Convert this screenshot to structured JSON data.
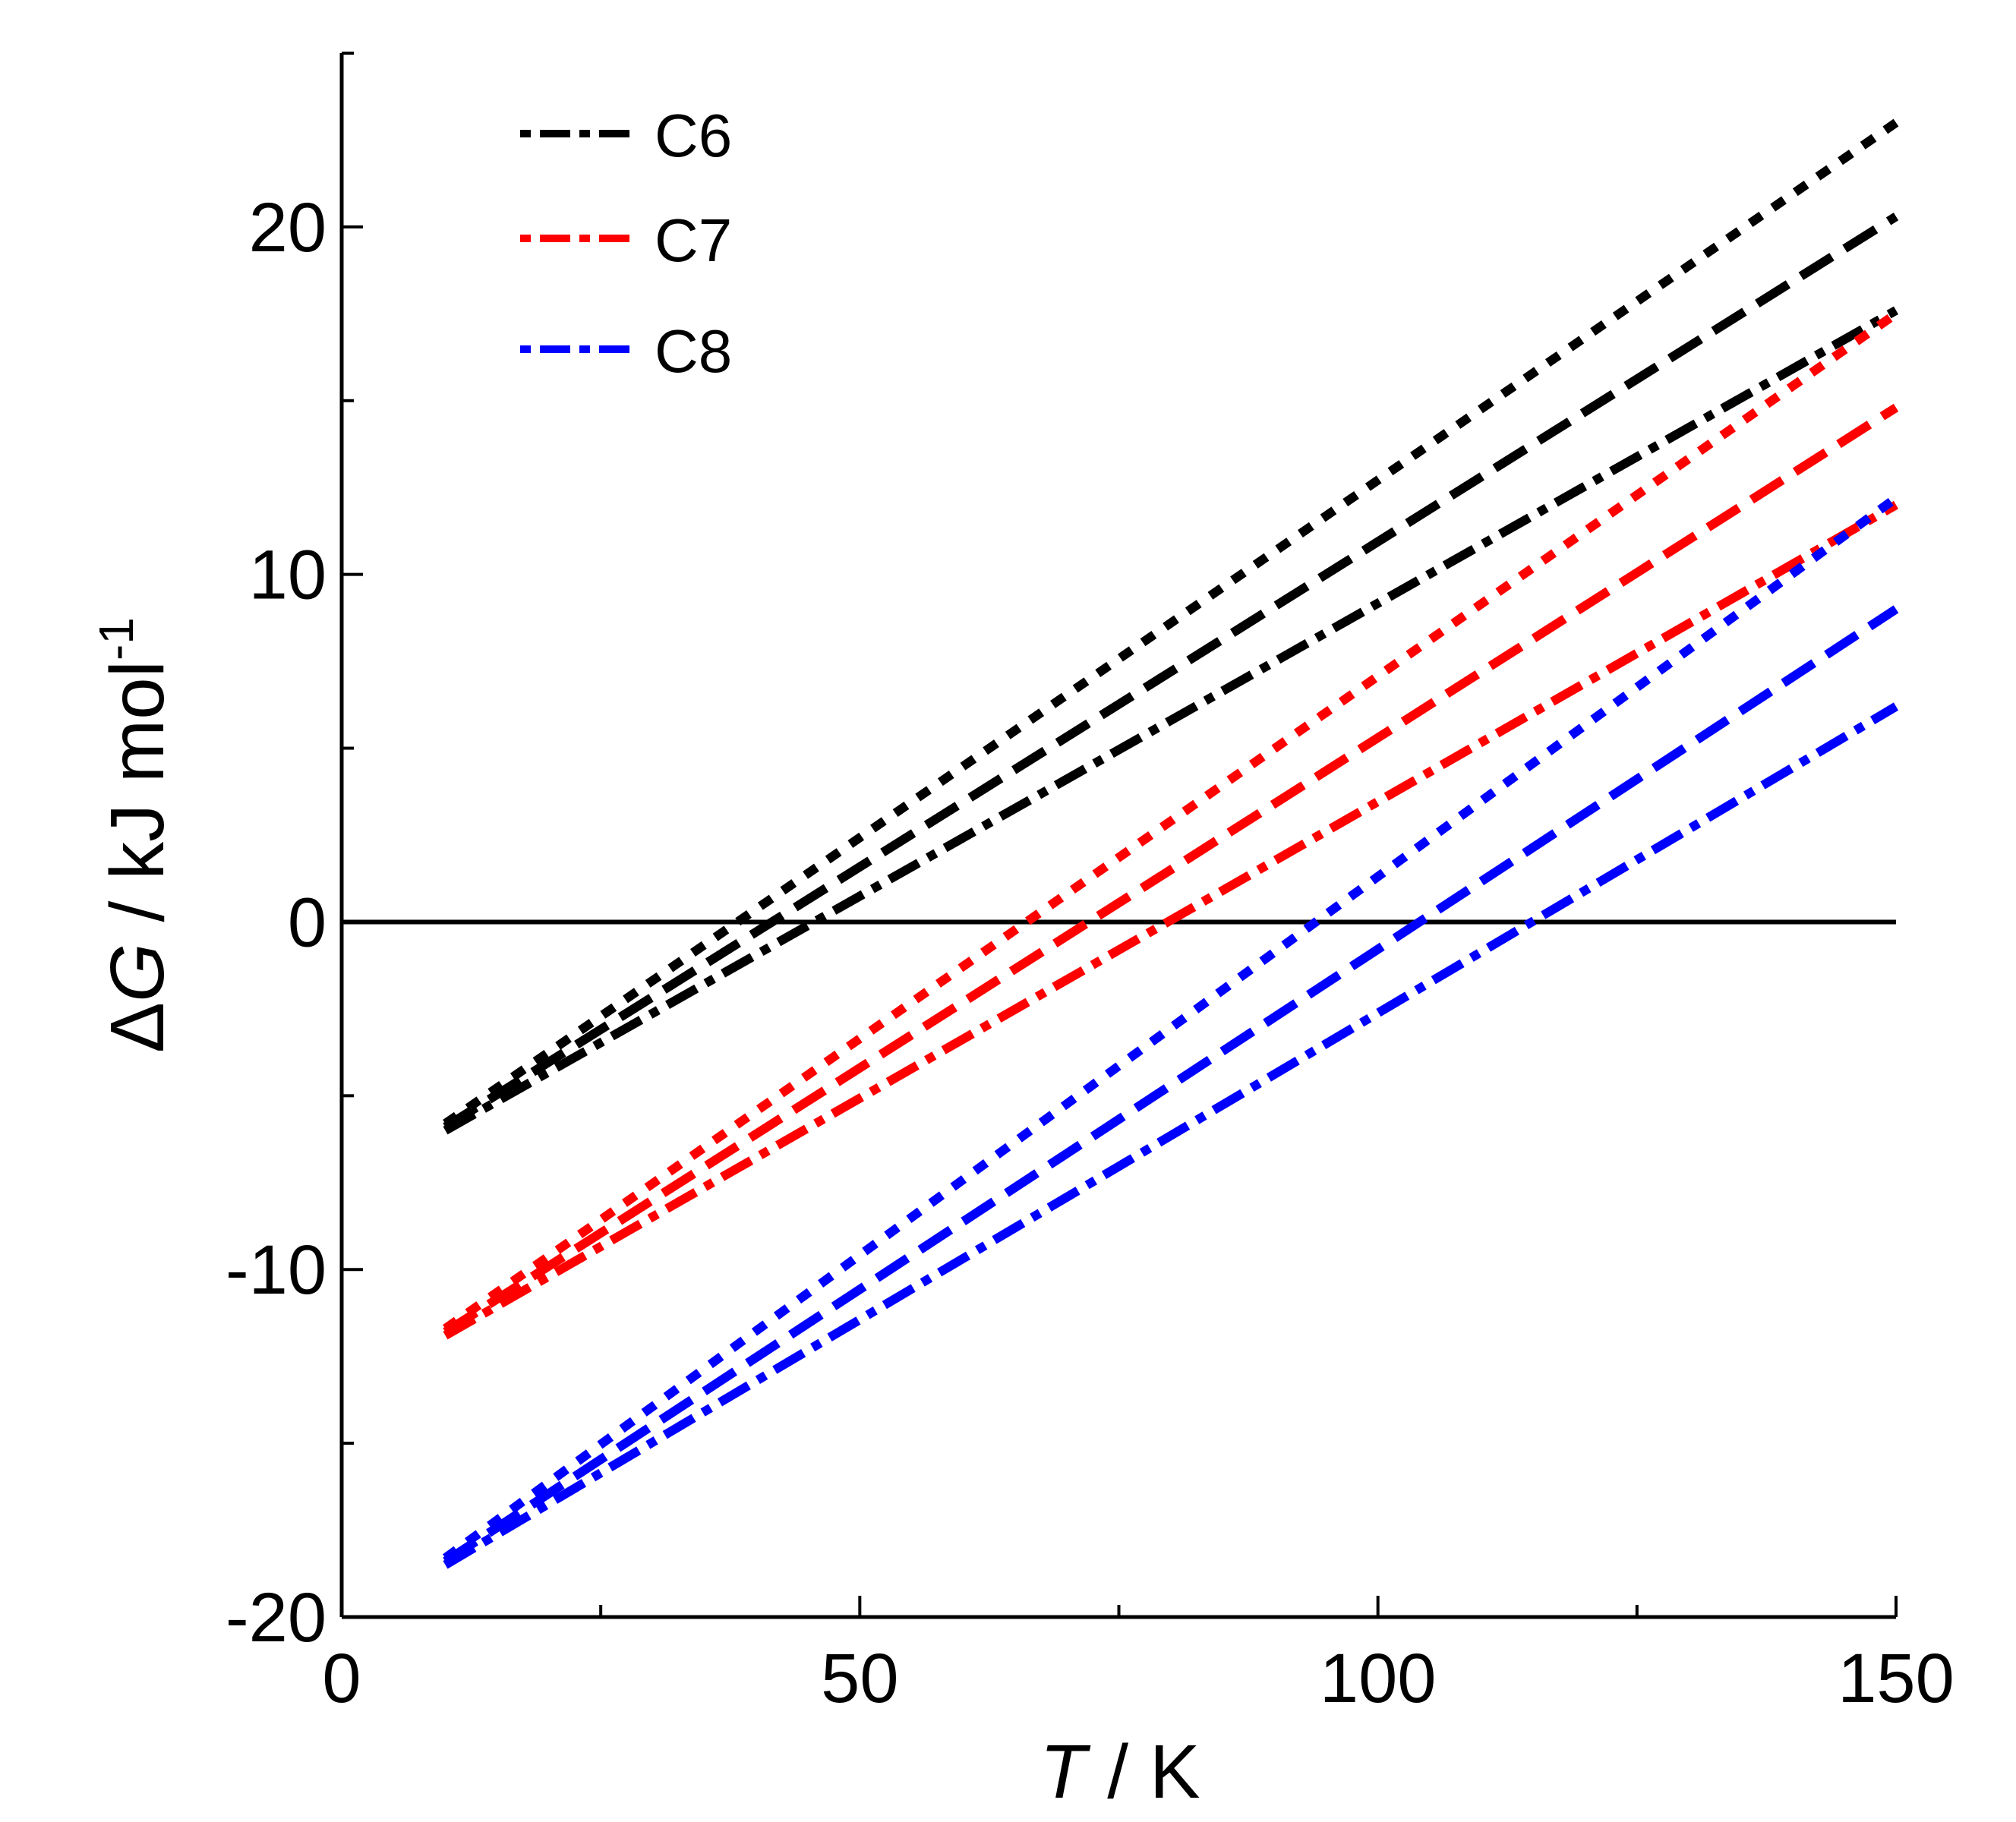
{
  "chart_data": {
    "type": "line",
    "xlabel_italic": "T",
    "xlabel_rest": " / K",
    "ylabel_delta": "Δ",
    "ylabel_italic": "G",
    "ylabel_rest": " / kJ mol",
    "ylabel_sup": "-1",
    "xlim": [
      0,
      150
    ],
    "ylim": [
      -20,
      25
    ],
    "x_ticks": [
      "0",
      "50",
      "100",
      "150"
    ],
    "y_ticks": [
      "-20",
      "-10",
      "0",
      "10",
      "20"
    ],
    "zero_line": true,
    "legend_position": "top-left",
    "legend": [
      {
        "label": "C6",
        "color": "#000000"
      },
      {
        "label": "C7",
        "color": "#ff0000"
      },
      {
        "label": "C8",
        "color": "#0000ff"
      }
    ],
    "series": [
      {
        "name": "C6 (short dash)",
        "group": "C6",
        "color": "#000000",
        "dash": "short",
        "x": [
          10,
          150
        ],
        "y": [
          -5.8,
          23.0
        ]
      },
      {
        "name": "C6 (long dash)",
        "group": "C6",
        "color": "#000000",
        "dash": "long",
        "x": [
          10,
          150
        ],
        "y": [
          -5.9,
          20.3
        ]
      },
      {
        "name": "C6 (dash-dot)",
        "group": "C6",
        "color": "#000000",
        "dash": "dashdot",
        "x": [
          10,
          150
        ],
        "y": [
          -6.0,
          17.6
        ]
      },
      {
        "name": "C7 (short dash)",
        "group": "C7",
        "color": "#ff0000",
        "dash": "short",
        "x": [
          10,
          150
        ],
        "y": [
          -11.7,
          17.5
        ]
      },
      {
        "name": "C7 (long dash)",
        "group": "C7",
        "color": "#ff0000",
        "dash": "long",
        "x": [
          10,
          150
        ],
        "y": [
          -11.8,
          14.8
        ]
      },
      {
        "name": "C7 (dash-dot)",
        "group": "C7",
        "color": "#ff0000",
        "dash": "dashdot",
        "x": [
          10,
          150
        ],
        "y": [
          -11.9,
          12.0
        ]
      },
      {
        "name": "C8 (short dash)",
        "group": "C8",
        "color": "#0000ff",
        "dash": "short",
        "x": [
          10,
          150
        ],
        "y": [
          -18.3,
          12.2
        ]
      },
      {
        "name": "C8 (long dash)",
        "group": "C8",
        "color": "#0000ff",
        "dash": "long",
        "x": [
          10,
          150
        ],
        "y": [
          -18.4,
          9.0
        ]
      },
      {
        "name": "C8 (dash-dot)",
        "group": "C8",
        "color": "#0000ff",
        "dash": "dashdot",
        "x": [
          10,
          150
        ],
        "y": [
          -18.5,
          6.2
        ]
      }
    ]
  }
}
